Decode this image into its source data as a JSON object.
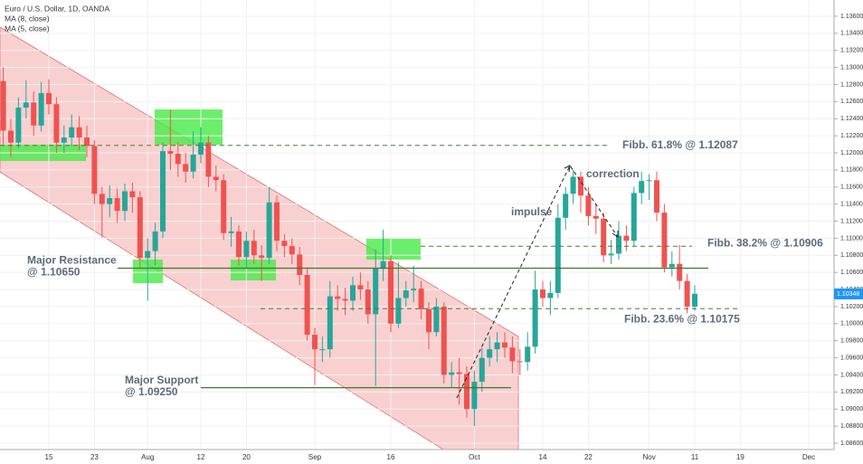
{
  "chart_data": {
    "type": "candlestick",
    "title": "Euro / U.S. Dollar, 1D, OANDA",
    "legend": [
      "MA (8, close)",
      "MA (5, close)"
    ],
    "categories": [
      null,
      null,
      null,
      null,
      null,
      null,
      "15",
      null,
      null,
      null,
      null,
      null,
      "23",
      null,
      null,
      null,
      null,
      null,
      null,
      "Aug",
      null,
      null,
      null,
      null,
      null,
      null,
      "12",
      null,
      null,
      null,
      null,
      null,
      "20",
      null,
      null,
      null,
      null,
      null,
      null,
      null,
      null,
      "Sep",
      null,
      null,
      null,
      null,
      null,
      null,
      null,
      null,
      null,
      "16",
      null,
      null,
      null,
      null,
      null,
      null,
      null,
      null,
      null,
      null,
      "Oct",
      null,
      null,
      null,
      null,
      null,
      null,
      null,
      null,
      "14",
      null,
      null,
      null,
      null,
      null,
      "22",
      null,
      null,
      null,
      null,
      null,
      null,
      null,
      "Nov",
      null,
      null,
      null,
      null,
      null,
      "11",
      null,
      null,
      null,
      null,
      null,
      "19",
      null,
      null,
      null,
      null,
      null,
      null,
      null,
      null,
      "Dec",
      null,
      null,
      null
    ],
    "open": [
      1.1284,
      1.1226,
      1.1212,
      1.1253,
      1.1259,
      1.1232,
      1.127,
      1.1257,
      1.1212,
      1.1218,
      1.123,
      1.1218,
      1.1208,
      1.1152,
      1.114,
      1.1147,
      1.1132,
      1.1155,
      1.1148,
      1.1077,
      1.1085,
      1.1108,
      1.1202,
      1.1199,
      1.1187,
      1.1178,
      1.1198,
      1.1212,
      1.1172,
      1.1168,
      1.1106,
      1.1108,
      1.1078,
      1.1097,
      1.108,
      1.1077,
      1.1142,
      1.1097,
      1.1091,
      1.1081,
      1.1057,
      1.0987,
      1.097,
      1.097,
      1.1032,
      1.1029,
      1.1027,
      1.1045,
      1.104,
      1.1011,
      1.1065,
      1.1073,
      1.1,
      1.103,
      1.1039,
      1.1041,
      1.1017,
      1.099,
      1.102,
      1.094,
      1.0943,
      1.0941,
      1.09,
      1.0932,
      1.096,
      1.097,
      1.0978,
      1.0972,
      1.0956,
      1.0955,
      1.0973,
      1.104,
      1.103,
      1.1036,
      1.1124,
      1.1152,
      1.1172,
      1.115,
      1.1126,
      1.1123,
      1.108,
      1.1082,
      1.1103,
      1.1097,
      1.1153,
      1.1167,
      1.1168,
      1.113,
      1.1066,
      1.107,
      1.105,
      1.102,
      null,
      null,
      null,
      null,
      null,
      null,
      null,
      null,
      null,
      null,
      null,
      null,
      null,
      null,
      null,
      null,
      null,
      null
    ],
    "high": [
      1.13,
      1.124,
      1.1265,
      1.1285,
      1.1272,
      1.1283,
      1.1286,
      1.1265,
      1.1232,
      1.1245,
      1.1243,
      1.1232,
      1.1215,
      1.116,
      1.1162,
      1.1158,
      1.1164,
      1.1165,
      1.1155,
      1.11,
      1.1118,
      1.1212,
      1.125,
      1.1212,
      1.12,
      1.1225,
      1.123,
      1.122,
      1.1185,
      1.1175,
      1.1125,
      1.1115,
      1.1108,
      1.111,
      1.1092,
      1.116,
      1.115,
      1.1105,
      1.11,
      1.109,
      1.1066,
      1.0995,
      1.0985,
      1.105,
      1.1045,
      1.1042,
      1.1055,
      1.106,
      1.105,
      1.1087,
      1.111,
      1.108,
      1.1072,
      1.105,
      1.1068,
      1.105,
      1.1025,
      1.103,
      1.1025,
      1.0955,
      1.096,
      1.095,
      1.0945,
      1.0972,
      1.0985,
      1.099,
      1.099,
      1.0985,
      1.097,
      1.099,
      1.1062,
      1.105,
      1.105,
      1.114,
      1.116,
      1.118,
      1.1178,
      1.116,
      1.114,
      1.113,
      1.1098,
      1.112,
      1.1115,
      1.116,
      1.1178,
      1.1175,
      1.1178,
      1.114,
      1.1085,
      1.1092,
      1.1058,
      1.1045,
      null,
      null,
      null,
      null,
      null,
      null,
      null,
      null,
      null,
      null,
      null,
      null,
      null,
      null,
      null,
      null,
      null,
      null
    ],
    "low": [
      1.121,
      1.1195,
      1.1205,
      1.124,
      1.122,
      1.1225,
      1.1245,
      1.12,
      1.12,
      1.1208,
      1.1203,
      1.1195,
      1.114,
      1.1101,
      1.1125,
      1.1118,
      1.112,
      1.113,
      1.1065,
      1.1027,
      1.1068,
      1.11,
      1.118,
      1.1172,
      1.1165,
      1.117,
      1.1188,
      1.116,
      1.1155,
      1.1098,
      1.109,
      1.1068,
      1.1065,
      1.107,
      1.105,
      1.107,
      1.1085,
      1.1078,
      1.107,
      1.1045,
      1.098,
      1.0928,
      1.0955,
      1.096,
      1.1015,
      1.101,
      1.1015,
      1.1028,
      1.1,
      1.0927,
      1.105,
      1.099,
      1.0995,
      1.102,
      1.1025,
      1.1005,
      1.097,
      1.0985,
      1.093,
      1.0925,
      1.0905,
      1.089,
      1.088,
      1.092,
      1.095,
      1.0955,
      1.096,
      1.0942,
      1.094,
      1.0945,
      1.0965,
      1.102,
      1.101,
      1.103,
      1.111,
      1.114,
      1.113,
      1.1115,
      1.1105,
      1.1072,
      1.107,
      1.1075,
      1.1085,
      1.109,
      1.114,
      1.1145,
      1.112,
      1.106,
      1.1055,
      1.104,
      1.1012,
      1.1015,
      null,
      null,
      null,
      null,
      null,
      null,
      null,
      null,
      null,
      null,
      null,
      null,
      null,
      null,
      null,
      null,
      null,
      null
    ],
    "close": [
      1.1226,
      1.1212,
      1.1253,
      1.1259,
      1.1232,
      1.127,
      1.1257,
      1.1212,
      1.1218,
      1.123,
      1.1218,
      1.1208,
      1.1152,
      1.114,
      1.1147,
      1.1132,
      1.1155,
      1.1148,
      1.1077,
      1.1085,
      1.1108,
      1.1202,
      1.1199,
      1.1187,
      1.1178,
      1.1198,
      1.1212,
      1.1172,
      1.1168,
      1.1106,
      1.1108,
      1.1078,
      1.1097,
      1.108,
      1.1077,
      1.1142,
      1.1097,
      1.1091,
      1.1081,
      1.1057,
      1.0987,
      1.097,
      1.097,
      1.1032,
      1.1029,
      1.1027,
      1.1045,
      1.104,
      1.1011,
      1.1065,
      1.1073,
      1.1,
      1.103,
      1.1039,
      1.1041,
      1.1017,
      1.099,
      1.102,
      1.094,
      1.0943,
      1.0941,
      1.09,
      1.0932,
      1.096,
      1.097,
      1.0978,
      1.0972,
      1.0956,
      1.0955,
      1.0973,
      1.104,
      1.103,
      1.1036,
      1.1124,
      1.1152,
      1.1172,
      1.115,
      1.1126,
      1.1123,
      1.108,
      1.1082,
      1.1103,
      1.1097,
      1.1153,
      1.1167,
      1.1168,
      1.113,
      1.1066,
      1.107,
      1.105,
      1.102,
      1.1035,
      null,
      null,
      null,
      null,
      null,
      null,
      null,
      null,
      null,
      null,
      null,
      null,
      null,
      null,
      null,
      null,
      null,
      null
    ],
    "up_color": "#26a69a",
    "down_color": "#ef5350",
    "ylim": [
      1.08526,
      1.1379
    ],
    "yticks": [
      {
        "value": 1.086,
        "label": "1.08600"
      },
      {
        "value": 1.088,
        "label": "1.08800"
      },
      {
        "value": 1.09,
        "label": "1.09000"
      },
      {
        "value": 1.092,
        "label": "1.09200"
      },
      {
        "value": 1.094,
        "label": "1.09400"
      },
      {
        "value": 1.096,
        "label": "1.09600"
      },
      {
        "value": 1.098,
        "label": "1.09800"
      },
      {
        "value": 1.1,
        "label": "1.10000"
      },
      {
        "value": 1.102,
        "label": "1.10200"
      },
      {
        "value": 1.104,
        "label": "1.10400"
      },
      {
        "value": 1.106,
        "label": "1.10600"
      },
      {
        "value": 1.108,
        "label": "1.10800"
      },
      {
        "value": 1.11,
        "label": "1.11000"
      },
      {
        "value": 1.112,
        "label": "1.11200"
      },
      {
        "value": 1.114,
        "label": "1.11400"
      },
      {
        "value": 1.116,
        "label": "1.11600"
      },
      {
        "value": 1.118,
        "label": "1.11800"
      },
      {
        "value": 1.12,
        "label": "1.12000"
      },
      {
        "value": 1.122,
        "label": "1.12200"
      },
      {
        "value": 1.124,
        "label": "1.12400"
      },
      {
        "value": 1.126,
        "label": "1.12600"
      },
      {
        "value": 1.128,
        "label": "1.12800"
      },
      {
        "value": 1.13,
        "label": "1.13000"
      },
      {
        "value": 1.132,
        "label": "1.13200"
      },
      {
        "value": 1.134,
        "label": "1.13400"
      },
      {
        "value": 1.136,
        "label": "1.13600"
      }
    ],
    "last_price": {
      "value": 1.10348,
      "label": "1.10348"
    },
    "levels": [
      {
        "label": [
          "Fibb. 61.8% @ 1.12087"
        ],
        "value": 1.12087,
        "style": "dashed"
      },
      {
        "label": [
          "Fibb. 38.2% @ 1.10906"
        ],
        "value": 1.10906,
        "style": "dashed"
      },
      {
        "label": [
          "Major Resistance",
          "@ 1.10650"
        ],
        "value": 1.1065,
        "style": "solid"
      },
      {
        "label": [
          "Fibb. 23.6% @ 1.10175"
        ],
        "value": 1.10175,
        "style": "dashed"
      },
      {
        "label": [
          "Major Support",
          "@ 1.09250"
        ],
        "value": 1.0925,
        "style": "solid"
      }
    ],
    "annotations": [
      "impulse",
      "correction"
    ]
  }
}
